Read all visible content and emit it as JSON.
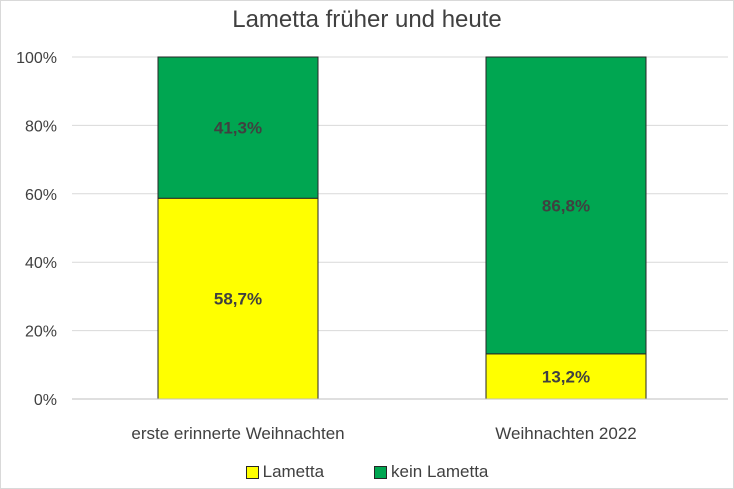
{
  "chart_data": {
    "type": "bar",
    "stacked": true,
    "title": "Lametta früher und heute",
    "categories": [
      "erste erinnerte Weihnachten",
      "Weihnachten 2022"
    ],
    "series": [
      {
        "name": "Lametta",
        "values": [
          58.7,
          13.2
        ],
        "labels": [
          "58,7%",
          "13,2%"
        ],
        "color": "#ffff00"
      },
      {
        "name": "kein Lametta",
        "values": [
          41.3,
          86.8
        ],
        "labels": [
          "41,3%",
          "86,8%"
        ],
        "color": "#00a651"
      }
    ],
    "yticks": [
      "0%",
      "20%",
      "40%",
      "60%",
      "80%",
      "100%"
    ],
    "ylim": [
      0,
      100
    ],
    "grid": true,
    "legend_position": "bottom"
  }
}
